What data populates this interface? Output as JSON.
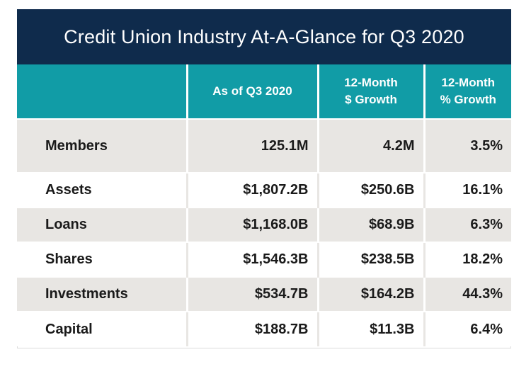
{
  "title": "Credit Union Industry At-A-Glance for Q3 2020",
  "colors": {
    "title_bg": "#0f2b4c",
    "header_bg": "#119ca6",
    "row_shade": "#e8e6e3"
  },
  "table": {
    "headers": [
      "",
      "As of Q3 2020",
      "12-Month\n$ Growth",
      "12-Month\n% Growth"
    ],
    "rows": [
      {
        "label": "Members",
        "as_of": "125.1M",
        "dollar_growth": "4.2M",
        "pct_growth": "3.5%"
      },
      {
        "label": "Assets",
        "as_of": "$1,807.2B",
        "dollar_growth": "$250.6B",
        "pct_growth": "16.1%"
      },
      {
        "label": "Loans",
        "as_of": "$1,168.0B",
        "dollar_growth": "$68.9B",
        "pct_growth": "6.3%"
      },
      {
        "label": "Shares",
        "as_of": "$1,546.3B",
        "dollar_growth": "$238.5B",
        "pct_growth": "18.2%"
      },
      {
        "label": "Investments",
        "as_of": "$534.7B",
        "dollar_growth": "$164.2B",
        "pct_growth": "44.3%"
      },
      {
        "label": "Capital",
        "as_of": "$188.7B",
        "dollar_growth": "$11.3B",
        "pct_growth": "6.4%"
      }
    ]
  }
}
